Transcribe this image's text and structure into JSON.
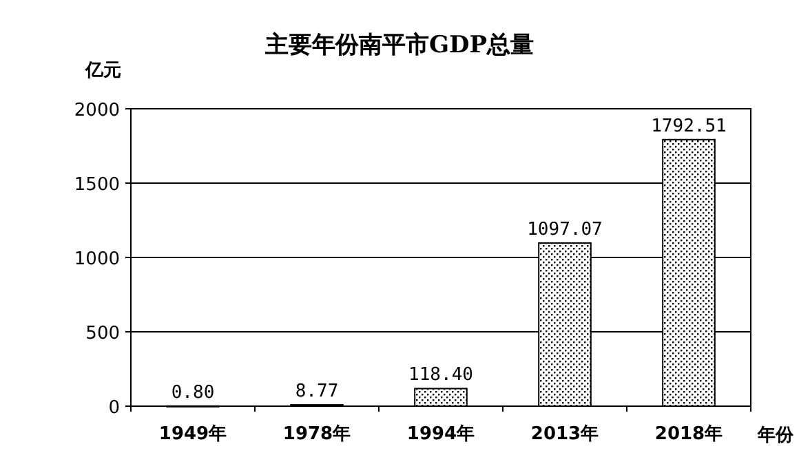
{
  "chart_data": {
    "type": "bar",
    "title": "主要年份南平市GDP总量",
    "ylabel": "亿元",
    "xlabel": "年份",
    "categories": [
      "1949年",
      "1978年",
      "1994年",
      "2013年",
      "2018年"
    ],
    "values": [
      0.8,
      8.77,
      118.4,
      1097.07,
      1792.51
    ],
    "value_labels": [
      "0.80",
      "8.77",
      "118.40",
      "1097.07",
      "1792.51"
    ],
    "color": "#000000",
    "ylim": [
      0,
      2000
    ],
    "yticks": [
      0,
      500,
      1000,
      1500,
      2000
    ],
    "grid": "y"
  }
}
